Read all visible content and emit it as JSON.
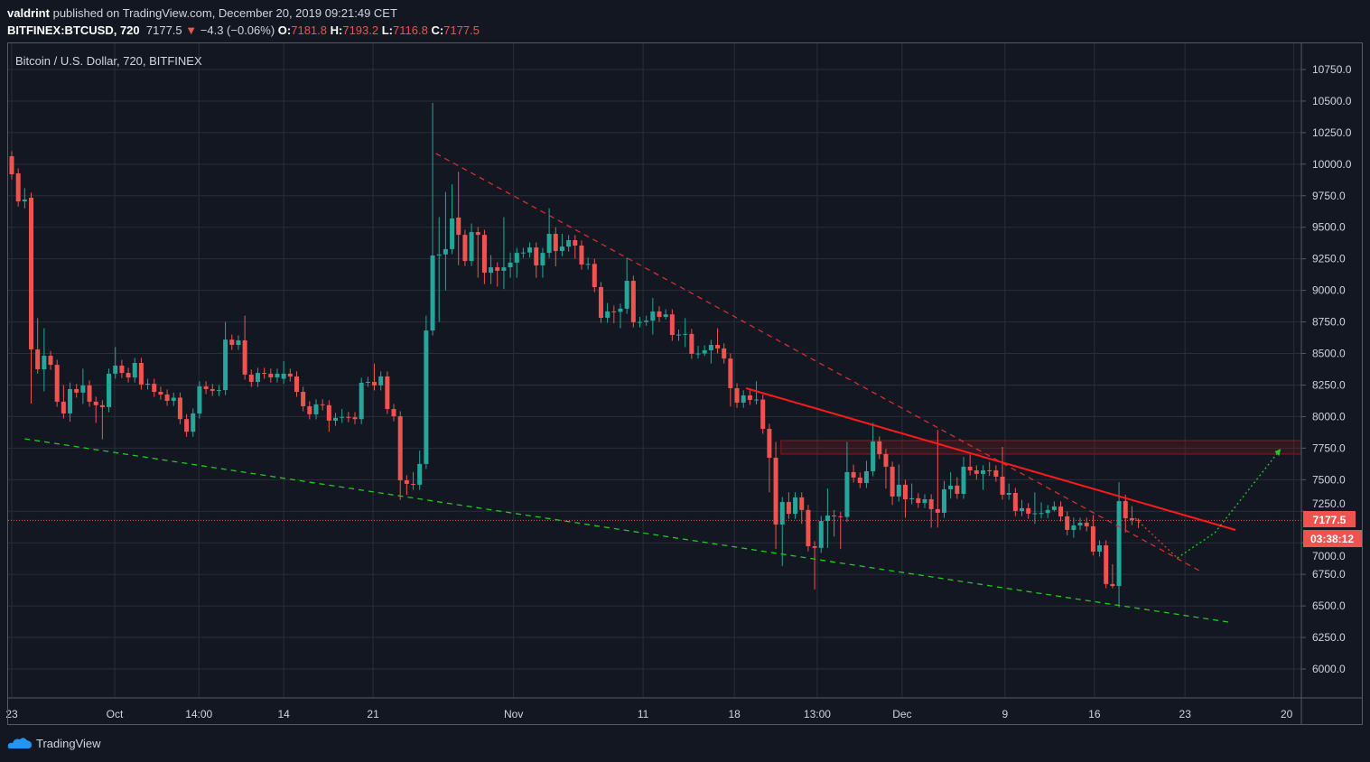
{
  "header": {
    "author": "valdrint",
    "published_text": "published on TradingView.com, December 20, 2019 09:21:49 CET",
    "symbol": "BITFINEX:BTCUSD, 720",
    "last": "7177.5",
    "change": "−4.3 (−0.06%)",
    "o_label": "O:",
    "o": "7181.8",
    "h_label": "H:",
    "h": "7193.2",
    "l_label": "L:",
    "l": "7116.8",
    "c_label": "C:",
    "c": "7177.5"
  },
  "legend": "Bitcoin / U.S. Dollar, 720, BITFINEX",
  "price_tag": "7177.5",
  "countdown": "03:38:12",
  "logo": "TradingView",
  "colors": {
    "up": "#26a69a",
    "down": "#ef5350",
    "grid": "#2a2e39",
    "background": "#131722"
  },
  "chart_data": {
    "type": "candlestick",
    "title": "Bitcoin / U.S. Dollar, 720, BITFINEX",
    "ylim": [
      5850,
      10850
    ],
    "grid": true,
    "y_ticks": [
      "6000.0",
      "6250.0",
      "6500.0",
      "6750.0",
      "7000.0",
      "7250.0",
      "7500.0",
      "7750.0",
      "8000.0",
      "8250.0",
      "8500.0",
      "8750.0",
      "9000.0",
      "9250.0",
      "9500.0",
      "9750.0",
      "10000.0",
      "10250.0",
      "10500.0",
      "10750.0"
    ],
    "x_ticks": [
      {
        "label": "23",
        "bar": 0
      },
      {
        "label": "Oct",
        "bar": 15.9
      },
      {
        "label": "14:00",
        "bar": 28.9
      },
      {
        "label": "14",
        "bar": 42
      },
      {
        "label": "21",
        "bar": 55.8
      },
      {
        "label": "Nov",
        "bar": 77.5
      },
      {
        "label": "11",
        "bar": 97.5
      },
      {
        "label": "18",
        "bar": 111.6
      },
      {
        "label": "13:00",
        "bar": 124.4
      },
      {
        "label": "Dec",
        "bar": 137.5
      },
      {
        "label": "9",
        "bar": 153.4
      },
      {
        "label": "16",
        "bar": 167.2
      },
      {
        "label": "23",
        "bar": 181.2
      },
      {
        "label": "20",
        "bar": 198
      }
    ],
    "ohlc": [
      [
        10063,
        10103,
        9880,
        9920
      ],
      [
        9927,
        9967,
        9665,
        9705
      ],
      [
        9705,
        9810,
        9650,
        9720
      ],
      [
        9734,
        9774,
        8103,
        8532
      ],
      [
        8532,
        8780,
        8340,
        8375
      ],
      [
        8375,
        8700,
        8200,
        8482
      ],
      [
        8482,
        8520,
        8370,
        8410
      ],
      [
        8410,
        8450,
        8078,
        8118
      ],
      [
        8118,
        8250,
        7985,
        8025
      ],
      [
        8025,
        8270,
        7960,
        8218
      ],
      [
        8218,
        8258,
        8150,
        8190
      ],
      [
        8190,
        8380,
        8100,
        8247
      ],
      [
        8247,
        8287,
        8078,
        8118
      ],
      [
        8118,
        8158,
        7950,
        8090
      ],
      [
        8090,
        8130,
        7820,
        8075
      ],
      [
        8075,
        8380,
        8035,
        8340
      ],
      [
        8340,
        8550,
        8300,
        8404
      ],
      [
        8404,
        8450,
        8306,
        8346
      ],
      [
        8346,
        8386,
        8270,
        8310
      ],
      [
        8310,
        8465,
        8270,
        8425
      ],
      [
        8425,
        8465,
        8214,
        8254
      ],
      [
        8254,
        8300,
        8214,
        8260
      ],
      [
        8260,
        8300,
        8156,
        8196
      ],
      [
        8196,
        8236,
        8135,
        8175
      ],
      [
        8175,
        8215,
        8085,
        8125
      ],
      [
        8125,
        8190,
        8085,
        8150
      ],
      [
        8150,
        8190,
        7940,
        7980
      ],
      [
        7980,
        8020,
        7840,
        7880
      ],
      [
        7880,
        8065,
        7840,
        8025
      ],
      [
        8025,
        8280,
        7985,
        8240
      ],
      [
        8240,
        8280,
        8178,
        8218
      ],
      [
        8218,
        8258,
        8164,
        8204
      ],
      [
        8204,
        8250,
        8164,
        8210
      ],
      [
        8210,
        8750,
        8170,
        8610
      ],
      [
        8610,
        8650,
        8528,
        8568
      ],
      [
        8568,
        8644,
        8528,
        8604
      ],
      [
        8604,
        8800,
        8293,
        8333
      ],
      [
        8333,
        8373,
        8235,
        8275
      ],
      [
        8275,
        8386,
        8235,
        8346
      ],
      [
        8346,
        8386,
        8300,
        8340
      ],
      [
        8340,
        8380,
        8270,
        8310
      ],
      [
        8310,
        8380,
        8270,
        8340
      ],
      [
        8300,
        8440,
        8260,
        8340
      ],
      [
        8340,
        8380,
        8278,
        8318
      ],
      [
        8318,
        8358,
        8156,
        8196
      ],
      [
        8196,
        8236,
        8042,
        8082
      ],
      [
        8082,
        8122,
        7978,
        8018
      ],
      [
        8018,
        8137,
        7978,
        8097
      ],
      [
        8097,
        8137,
        8050,
        8090
      ],
      [
        8090,
        8130,
        7880,
        7968
      ],
      [
        7968,
        8030,
        7928,
        7990
      ],
      [
        7990,
        8060,
        7950,
        7997
      ],
      [
        7997,
        8037,
        7955,
        7995
      ],
      [
        7995,
        8035,
        7940,
        7980
      ],
      [
        7980,
        8308,
        7940,
        8268
      ],
      [
        8268,
        8315,
        8235,
        8275
      ],
      [
        8275,
        8420,
        8207,
        8247
      ],
      [
        8247,
        8358,
        8207,
        8318
      ],
      [
        8318,
        8358,
        8020,
        8060
      ],
      [
        8060,
        8100,
        7963,
        8003
      ],
      [
        8003,
        8043,
        7340,
        7495
      ],
      [
        7495,
        7535,
        7380,
        7467
      ],
      [
        7467,
        7560,
        7420,
        7460
      ],
      [
        7460,
        7730,
        7420,
        7625
      ],
      [
        7625,
        8800,
        7585,
        8682
      ],
      [
        8682,
        10485,
        8642,
        9277
      ],
      [
        9277,
        9580,
        8750,
        9285
      ],
      [
        9285,
        9780,
        9000,
        9327
      ],
      [
        9327,
        9840,
        9287,
        9570
      ],
      [
        9577,
        9940,
        9200,
        9440
      ],
      [
        9440,
        9480,
        9193,
        9233
      ],
      [
        9233,
        9530,
        9193,
        9462
      ],
      [
        9462,
        9502,
        9100,
        9440
      ],
      [
        9440,
        9480,
        9050,
        9140
      ],
      [
        9140,
        9280,
        9050,
        9183
      ],
      [
        9183,
        9223,
        9030,
        9155
      ],
      [
        9155,
        9580,
        9010,
        9183
      ],
      [
        9183,
        9300,
        9100,
        9220
      ],
      [
        9220,
        9337,
        9100,
        9297
      ],
      [
        9297,
        9337,
        9257,
        9300
      ],
      [
        9300,
        9380,
        9260,
        9340
      ],
      [
        9340,
        9380,
        9100,
        9198
      ],
      [
        9198,
        9337,
        9100,
        9297
      ],
      [
        9297,
        9650,
        9257,
        9448
      ],
      [
        9448,
        9500,
        9190,
        9312
      ],
      [
        9312,
        9450,
        9272,
        9347
      ],
      [
        9347,
        9438,
        9307,
        9398
      ],
      [
        9398,
        9438,
        9250,
        9355
      ],
      [
        9355,
        9395,
        9165,
        9205
      ],
      [
        9205,
        9260,
        9165,
        9210
      ],
      [
        9210,
        9250,
        8986,
        9026
      ],
      [
        9026,
        9066,
        8743,
        8783
      ],
      [
        8783,
        8900,
        8743,
        8833
      ],
      [
        8833,
        8880,
        8740,
        8830
      ],
      [
        8830,
        8895,
        8700,
        8855
      ],
      [
        8855,
        9260,
        8815,
        9076
      ],
      [
        9076,
        9116,
        8707,
        8747
      ],
      [
        8747,
        8790,
        8707,
        8750
      ],
      [
        8750,
        8800,
        8720,
        8760
      ],
      [
        8760,
        8940,
        8650,
        8833
      ],
      [
        8833,
        8873,
        8750,
        8790
      ],
      [
        8790,
        8850,
        8770,
        8810
      ],
      [
        8810,
        8850,
        8600,
        8647
      ],
      [
        8647,
        8690,
        8600,
        8650
      ],
      [
        8655,
        8780,
        8550,
        8655
      ],
      [
        8655,
        8695,
        8457,
        8497
      ],
      [
        8497,
        8560,
        8460,
        8500
      ],
      [
        8500,
        8565,
        8480,
        8525
      ],
      [
        8525,
        8608,
        8420,
        8568
      ],
      [
        8568,
        8700,
        8500,
        8540
      ],
      [
        8540,
        8580,
        8420,
        8460
      ],
      [
        8460,
        8500,
        8080,
        8225
      ],
      [
        8225,
        8265,
        8070,
        8110
      ],
      [
        8110,
        8208,
        8070,
        8168
      ],
      [
        8168,
        8208,
        8092,
        8132
      ],
      [
        8132,
        8280,
        8095,
        8135
      ],
      [
        8135,
        8175,
        7863,
        7903
      ],
      [
        7903,
        7943,
        7400,
        7674
      ],
      [
        7674,
        7800,
        6950,
        7145
      ],
      [
        7145,
        7363,
        6816,
        7323
      ],
      [
        7323,
        7400,
        7190,
        7230
      ],
      [
        7230,
        7400,
        7190,
        7360
      ],
      [
        7360,
        7400,
        7150,
        7260
      ],
      [
        7260,
        7300,
        6933,
        6973
      ],
      [
        6973,
        7013,
        6630,
        6960
      ],
      [
        6960,
        7213,
        6920,
        7173
      ],
      [
        7173,
        7430,
        6960,
        7216
      ],
      [
        7216,
        7260,
        7050,
        7210
      ],
      [
        7210,
        7245,
        6950,
        7205
      ],
      [
        7205,
        7800,
        7165,
        7560
      ],
      [
        7560,
        7620,
        7477,
        7517
      ],
      [
        7517,
        7557,
        7434,
        7474
      ],
      [
        7474,
        7650,
        7434,
        7567
      ],
      [
        7567,
        7950,
        7527,
        7803
      ],
      [
        7803,
        7843,
        7663,
        7703
      ],
      [
        7703,
        7743,
        7430,
        7603
      ],
      [
        7603,
        7643,
        7300,
        7367
      ],
      [
        7367,
        7620,
        7327,
        7460
      ],
      [
        7460,
        7500,
        7200,
        7345
      ],
      [
        7345,
        7470,
        7305,
        7353
      ],
      [
        7353,
        7393,
        7276,
        7316
      ],
      [
        7316,
        7385,
        7276,
        7345
      ],
      [
        7345,
        7385,
        7120,
        7267
      ],
      [
        7267,
        7895,
        7120,
        7238
      ],
      [
        7238,
        7490,
        7198,
        7424
      ],
      [
        7424,
        7560,
        7350,
        7453
      ],
      [
        7453,
        7520,
        7348,
        7388
      ],
      [
        7388,
        7680,
        7348,
        7603
      ],
      [
        7603,
        7700,
        7534,
        7574
      ],
      [
        7574,
        7614,
        7500,
        7546
      ],
      [
        7546,
        7614,
        7420,
        7574
      ],
      [
        7574,
        7640,
        7530,
        7570
      ],
      [
        7574,
        7614,
        7484,
        7524
      ],
      [
        7524,
        7760,
        7341,
        7381
      ],
      [
        7381,
        7470,
        7341,
        7395
      ],
      [
        7395,
        7435,
        7212,
        7252
      ],
      [
        7252,
        7340,
        7212,
        7274
      ],
      [
        7274,
        7314,
        7191,
        7231
      ],
      [
        7231,
        7400,
        7150,
        7234
      ],
      [
        7234,
        7320,
        7194,
        7236
      ],
      [
        7236,
        7300,
        7196,
        7260
      ],
      [
        7260,
        7328,
        7248,
        7288
      ],
      [
        7288,
        7328,
        7169,
        7209
      ],
      [
        7209,
        7249,
        7060,
        7102
      ],
      [
        7102,
        7200,
        7040,
        7137
      ],
      [
        7137,
        7199,
        7100,
        7159
      ],
      [
        7159,
        7199,
        7091,
        7131
      ],
      [
        7131,
        7220,
        6900,
        6930
      ],
      [
        6930,
        7020,
        6890,
        6980
      ],
      [
        6980,
        7020,
        6640,
        6673
      ],
      [
        6673,
        6830,
        6640,
        6658
      ],
      [
        6658,
        7480,
        6487,
        7330
      ],
      [
        7330,
        7380,
        7080,
        7195
      ],
      [
        7195,
        7290,
        7140,
        7180
      ],
      [
        7181.8,
        7193.2,
        7116.8,
        7177.5
      ]
    ],
    "last_price": 7177.5,
    "drawings": [
      {
        "name": "descending-resistance-dashed",
        "color": "#d32f2f",
        "style": "dashed",
        "points": [
          [
            65.5,
            10085
          ],
          [
            183.4,
            6780
          ]
        ]
      },
      {
        "name": "descending-resistance-solid",
        "color": "#ff1a1a",
        "style": "solid",
        "points": [
          [
            113.4,
            8225
          ],
          [
            189,
            7102
          ]
        ]
      },
      {
        "name": "support-dashed",
        "color": "#22c922",
        "style": "dashed",
        "points": [
          [
            2,
            7824
          ],
          [
            187.9,
            6372
          ]
        ]
      },
      {
        "name": "forecast-down-dotted",
        "color": "#e53935",
        "style": "dotted",
        "points": [
          [
            173.5,
            7195
          ],
          [
            180,
            6880
          ]
        ]
      },
      {
        "name": "forecast-up-dotted",
        "color": "#22c922",
        "style": "dotted",
        "points": [
          [
            180,
            6880
          ],
          [
            185.8,
            7080
          ],
          [
            196,
            7745
          ]
        ]
      }
    ],
    "zones": [
      {
        "name": "resistance-zone",
        "from_bar": 118.8,
        "top": 7810,
        "bottom": 7703,
        "color": "#8b1a1a"
      }
    ]
  }
}
